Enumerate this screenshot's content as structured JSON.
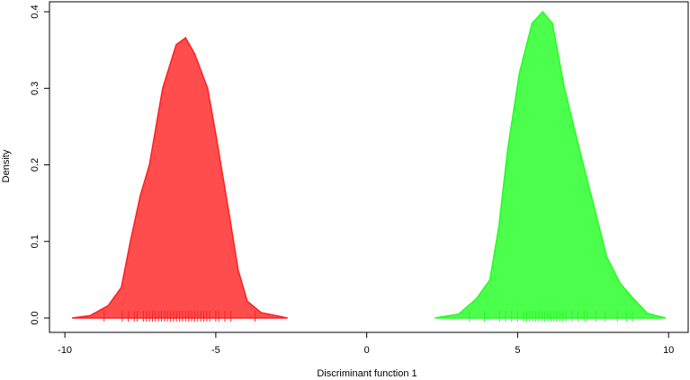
{
  "chart_data": {
    "type": "density",
    "x_label": "Discriminant function 1",
    "y_label": "Density",
    "xlim": [
      -10.51,
      10.65
    ],
    "ylim": [
      -0.0188,
      0.413
    ],
    "xticks": [
      -10,
      -5,
      0,
      5,
      10
    ],
    "yticks": [
      {
        "value": 0,
        "label": "0.0"
      },
      0.1,
      0.2,
      0.3,
      0.4
    ],
    "series": [
      {
        "color": "#ff4d4d",
        "stroke": "#ff2020",
        "x": [
          -9.76,
          -9.17,
          -8.57,
          -8.13,
          -7.83,
          -7.5,
          -7.2,
          -6.76,
          -6.31,
          -6.0,
          -5.7,
          -5.27,
          -5.0,
          -4.55,
          -4.26,
          -3.96,
          -3.5,
          -2.62
        ],
        "values": [
          0,
          0.003,
          0.016,
          0.04,
          0.1,
          0.16,
          0.2,
          0.3,
          0.357,
          0.366,
          0.345,
          0.3,
          0.24,
          0.134,
          0.063,
          0.022,
          0.007,
          0
        ],
        "rug": [
          -8.7,
          -8.1,
          -7.9,
          -7.7,
          -7.6,
          -7.4,
          -7.3,
          -7.2,
          -7.1,
          -7.0,
          -6.9,
          -6.8,
          -6.7,
          -6.6,
          -6.5,
          -6.4,
          -6.3,
          -6.2,
          -6.1,
          -6.0,
          -5.9,
          -5.8,
          -5.7,
          -5.6,
          -5.5,
          -5.4,
          -5.3,
          -5.2,
          -5.0,
          -4.9,
          -4.7,
          -4.5,
          -3.7
        ]
      },
      {
        "color": "#4dff4d",
        "stroke": "#20ff20",
        "x": [
          2.26,
          3.04,
          3.63,
          4.08,
          4.38,
          4.67,
          5.06,
          5.48,
          5.83,
          6.15,
          6.55,
          7.05,
          7.5,
          7.95,
          8.4,
          8.84,
          9.3,
          9.9
        ],
        "values": [
          0,
          0.005,
          0.025,
          0.05,
          0.12,
          0.22,
          0.32,
          0.385,
          0.4,
          0.385,
          0.3,
          0.22,
          0.15,
          0.08,
          0.045,
          0.025,
          0.006,
          0
        ],
        "rug": [
          3.4,
          3.9,
          4.4,
          4.6,
          4.8,
          5.0,
          5.2,
          5.3,
          5.4,
          5.5,
          5.6,
          5.7,
          5.8,
          5.9,
          6.0,
          6.1,
          6.2,
          6.3,
          6.4,
          6.5,
          6.6,
          6.8,
          7.0,
          7.2,
          7.3,
          7.6,
          7.9,
          8.3,
          8.6,
          8.8
        ]
      }
    ]
  }
}
